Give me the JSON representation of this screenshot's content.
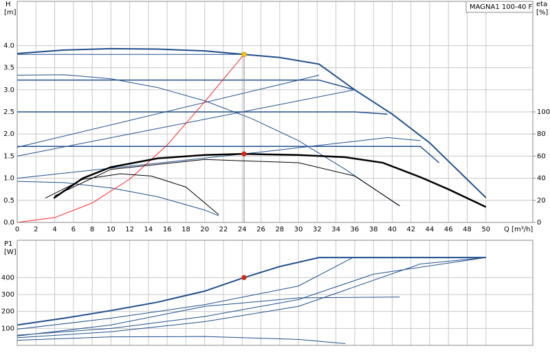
{
  "chart_data": [
    {
      "type": "line",
      "title": "MAGNA1 100-40 F",
      "ylabel": "H",
      "yunit": "[m]",
      "y2label": "eta",
      "y2unit": "[%]",
      "xlabel": "Q [m³/h]",
      "xlim": [
        0,
        55
      ],
      "ylim": [
        0,
        5
      ],
      "y2lim": [
        0,
        200
      ],
      "grid": true,
      "xticks": [
        0,
        2,
        4,
        6,
        8,
        10,
        12,
        14,
        16,
        18,
        20,
        22,
        24,
        26,
        28,
        30,
        32,
        34,
        36,
        38,
        40,
        42,
        44,
        46,
        48,
        50
      ],
      "yticks": [
        {
          "value": 0,
          "label": "0.0"
        },
        0.5,
        {
          "value": 1,
          "label": "1.0"
        },
        1.5,
        {
          "value": 2,
          "label": "2.0"
        },
        2.5,
        {
          "value": 3,
          "label": "3.0"
        },
        3.5,
        {
          "value": 4,
          "label": "4.0"
        }
      ],
      "y2ticks": [
        0,
        20,
        40,
        60,
        80,
        100
      ],
      "series": [
        {
          "color": "#1f4e8c",
          "width": 2,
          "x": [
            0,
            5,
            10,
            15,
            20,
            24.2,
            28,
            32.2,
            36,
            40,
            44,
            50
          ],
          "values": [
            3.82,
            3.9,
            3.93,
            3.92,
            3.88,
            3.8,
            3.73,
            3.58,
            3.0,
            2.45,
            1.8,
            0.56
          ]
        },
        {
          "color": "#1f4e8c",
          "width": 1,
          "x": [
            0,
            24.2
          ],
          "values": [
            3.8,
            3.8
          ]
        },
        {
          "color": "#1f4e8c",
          "width": 1.5,
          "x": [
            0,
            32.2,
            36
          ],
          "values": [
            3.22,
            3.22,
            3.0
          ]
        },
        {
          "color": "#1f4e8c",
          "width": 1.5,
          "x": [
            0,
            36,
            39.5
          ],
          "values": [
            2.5,
            2.5,
            2.45
          ]
        },
        {
          "color": "#1f4e8c",
          "width": 1.5,
          "x": [
            0,
            43,
            45
          ],
          "values": [
            1.72,
            1.72,
            1.35
          ]
        },
        {
          "color": "#1f4e8c",
          "width": 1,
          "x": [
            0,
            32.2
          ],
          "values": [
            1.7,
            3.33
          ]
        },
        {
          "color": "#1f4e8c",
          "width": 1,
          "x": [
            0,
            36
          ],
          "values": [
            1.5,
            3.0
          ]
        },
        {
          "color": "#1f4e8c",
          "width": 1,
          "x": [
            0,
            24.2,
            39.5,
            43
          ],
          "values": [
            1.0,
            1.55,
            1.92,
            1.85
          ]
        },
        {
          "color": "#1f4e8c",
          "width": 1,
          "x": [
            0,
            5,
            10,
            15,
            20,
            25,
            30,
            35,
            40.8
          ],
          "values": [
            3.33,
            3.34,
            3.25,
            3.05,
            2.75,
            2.35,
            1.85,
            1.2,
            0.37
          ]
        },
        {
          "color": "#1f4e8c",
          "width": 1,
          "x": [
            0,
            5,
            10,
            15,
            20,
            21.5
          ],
          "values": [
            0.93,
            0.9,
            0.78,
            0.58,
            0.28,
            0.15
          ]
        },
        {
          "color": "#ff2020",
          "width": 1,
          "x": [
            0,
            4,
            8,
            12,
            16,
            20,
            24.2
          ],
          "values": [
            0,
            0.11,
            0.44,
            0.98,
            1.75,
            2.73,
            3.8
          ]
        },
        {
          "color": "#808080",
          "width": 1,
          "x": [
            24.2,
            24.2
          ],
          "values": [
            0,
            3.8
          ]
        },
        {
          "color": "#000000",
          "width": 2.5,
          "axis": "y2",
          "x": [
            3.9,
            7,
            10,
            15,
            20,
            24.2,
            30,
            35,
            39,
            43,
            46,
            50
          ],
          "values": [
            22,
            40,
            50,
            58,
            61,
            62,
            61,
            59,
            54,
            41,
            30,
            14
          ]
        },
        {
          "color": "#000000",
          "width": 1,
          "axis": "y2",
          "x": [
            3,
            7,
            11,
            14.3,
            18,
            21.5
          ],
          "values": [
            22,
            39,
            44,
            42,
            32,
            7
          ]
        },
        {
          "color": "#000000",
          "width": 1,
          "axis": "y2",
          "x": [
            4,
            10,
            20,
            30,
            36,
            40.8
          ],
          "values": [
            24,
            48,
            57,
            54,
            42,
            15
          ]
        }
      ],
      "points": [
        {
          "x": 24.2,
          "y": 3.8,
          "color": "#ffc000"
        },
        {
          "x": 24.2,
          "y": 1.55,
          "color": "#e02020"
        }
      ]
    },
    {
      "type": "line",
      "ylabel": "P1",
      "yunit": "[W]",
      "xlim": [
        0,
        55
      ],
      "ylim": [
        0,
        620
      ],
      "grid": true,
      "xticks": [
        0,
        2,
        4,
        6,
        8,
        10,
        12,
        14,
        16,
        18,
        20,
        22,
        24,
        26,
        28,
        30,
        32,
        34,
        36,
        38,
        40,
        42,
        44,
        46,
        48,
        50
      ],
      "yticks": [
        100,
        200,
        300,
        400
      ],
      "series": [
        {
          "color": "#1f4e8c",
          "width": 2,
          "x": [
            0,
            5,
            10,
            15,
            20,
            24.2,
            28,
            32.2,
            50
          ],
          "values": [
            120,
            160,
            205,
            255,
            320,
            400,
            465,
            518,
            518
          ]
        },
        {
          "color": "#1f4e8c",
          "width": 1,
          "x": [
            0,
            10,
            20,
            30,
            35.8,
            50
          ],
          "values": [
            95,
            160,
            240,
            350,
            518,
            518
          ]
        },
        {
          "color": "#1f4e8c",
          "width": 1,
          "x": [
            0,
            10,
            20,
            30,
            38,
            50
          ],
          "values": [
            60,
            100,
            170,
            270,
            420,
            518
          ]
        },
        {
          "color": "#1f4e8c",
          "width": 1,
          "x": [
            0,
            10,
            20,
            30,
            43,
            50
          ],
          "values": [
            45,
            80,
            140,
            230,
            480,
            518
          ]
        },
        {
          "color": "#1f4e8c",
          "width": 1,
          "x": [
            0,
            10,
            20,
            30,
            40.8
          ],
          "values": [
            55,
            120,
            230,
            280,
            285
          ]
        },
        {
          "color": "#1f4e8c",
          "width": 1,
          "x": [
            0,
            10,
            20,
            30,
            35
          ],
          "values": [
            30,
            50,
            52,
            35,
            10
          ]
        }
      ],
      "points": [
        {
          "x": 24.2,
          "y": 400,
          "color": "#e02020"
        }
      ]
    }
  ]
}
